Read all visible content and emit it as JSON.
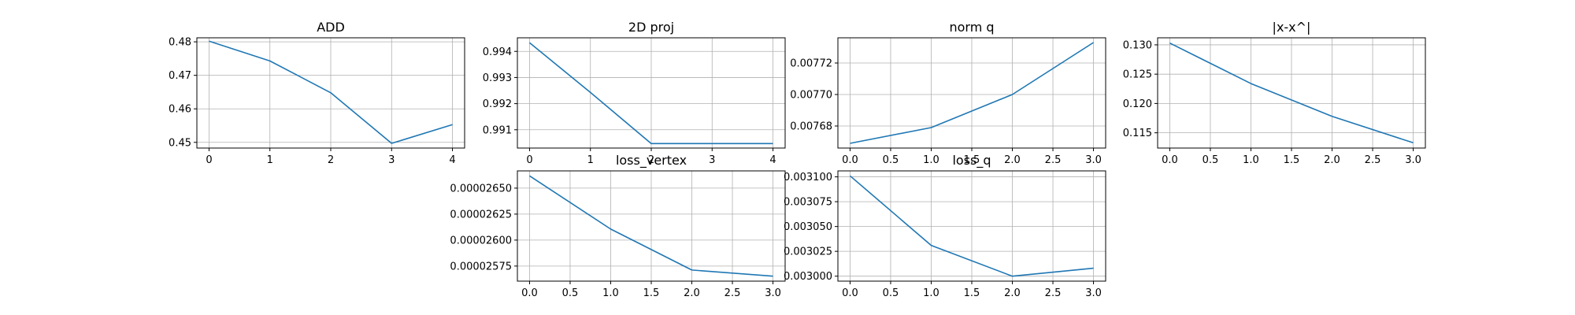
{
  "chart_data": [
    {
      "type": "line",
      "title": "ADD",
      "x": [
        0,
        1,
        2,
        3,
        4
      ],
      "y": [
        0.4802,
        0.4743,
        0.4648,
        0.4497,
        0.4553
      ],
      "xlim": [
        -0.2,
        4.2
      ],
      "ylim": [
        0.4483,
        0.4812
      ],
      "xticks": [
        0,
        1,
        2,
        3,
        4
      ],
      "xtick_labels": [
        "0",
        "1",
        "2",
        "3",
        "4"
      ],
      "yticks": [
        0.45,
        0.46,
        0.47,
        0.48
      ],
      "ytick_labels": [
        "0.45",
        "0.46",
        "0.47",
        "0.48"
      ],
      "grid": true,
      "color": "#1f77b4"
    },
    {
      "type": "line",
      "title": "2D proj",
      "x": [
        0,
        1,
        2,
        3,
        4
      ],
      "y": [
        0.99433,
        0.99243,
        0.99047,
        0.99047,
        0.99047
      ],
      "xlim": [
        -0.2,
        4.2
      ],
      "ylim": [
        0.9903,
        0.99452
      ],
      "xticks": [
        0,
        1,
        2,
        3,
        4
      ],
      "xtick_labels": [
        "0",
        "1",
        "2",
        "3",
        "4"
      ],
      "yticks": [
        0.991,
        0.992,
        0.993,
        0.994
      ],
      "ytick_labels": [
        "0.991",
        "0.992",
        "0.993",
        "0.994"
      ],
      "grid": true,
      "color": "#1f77b4"
    },
    {
      "type": "line",
      "title": "norm q",
      "x": [
        0.0,
        1.0,
        2.0,
        3.0
      ],
      "y": [
        0.007669,
        0.007679,
        0.0077,
        0.007733
      ],
      "xlim": [
        -0.15,
        3.15
      ],
      "ylim": [
        0.007666,
        0.007736
      ],
      "xticks": [
        0.0,
        0.5,
        1.0,
        1.5,
        2.0,
        2.5,
        3.0
      ],
      "xtick_labels": [
        "0.0",
        "0.5",
        "1.0",
        "1.5",
        "2.0",
        "2.5",
        "3.0"
      ],
      "yticks": [
        0.00768,
        0.0077,
        0.00772
      ],
      "ytick_labels": [
        "0.00768",
        "0.00770",
        "0.00772"
      ],
      "grid": true,
      "color": "#1f77b4"
    },
    {
      "type": "line",
      "title": "|x-x^|",
      "x": [
        0.0,
        1.0,
        2.0,
        3.0
      ],
      "y": [
        0.1303,
        0.1234,
        0.1178,
        0.1133
      ],
      "xlim": [
        -0.15,
        3.15
      ],
      "ylim": [
        0.1124,
        0.1312
      ],
      "xticks": [
        0.0,
        0.5,
        1.0,
        1.5,
        2.0,
        2.5,
        3.0
      ],
      "xtick_labels": [
        "0.0",
        "0.5",
        "1.0",
        "1.5",
        "2.0",
        "2.5",
        "3.0"
      ],
      "yticks": [
        0.115,
        0.12,
        0.125,
        0.13
      ],
      "ytick_labels": [
        "0.115",
        "0.120",
        "0.125",
        "0.130"
      ],
      "grid": true,
      "color": "#1f77b4"
    },
    {
      "type": "line",
      "title": "loss_vertex",
      "x": [
        0.0,
        1.0,
        2.0,
        3.0
      ],
      "y": [
        2.6618e-05,
        2.6106e-05,
        2.5712e-05,
        2.5653e-05
      ],
      "xlim": [
        -0.15,
        3.15
      ],
      "ylim": [
        2.5605e-05,
        2.6666e-05
      ],
      "xticks": [
        0.0,
        0.5,
        1.0,
        1.5,
        2.0,
        2.5,
        3.0
      ],
      "xtick_labels": [
        "0.0",
        "0.5",
        "1.0",
        "1.5",
        "2.0",
        "2.5",
        "3.0"
      ],
      "yticks": [
        2.575e-05,
        2.6e-05,
        2.625e-05,
        2.65e-05
      ],
      "ytick_labels": [
        "0.00002575",
        "0.00002600",
        "0.00002625",
        "0.00002650"
      ],
      "grid": true,
      "color": "#1f77b4"
    },
    {
      "type": "line",
      "title": "loss_q",
      "x": [
        0.0,
        1.0,
        2.0,
        3.0
      ],
      "y": [
        0.003101,
        0.003031,
        0.003,
        0.003008
      ],
      "xlim": [
        -0.15,
        3.15
      ],
      "ylim": [
        0.002995,
        0.003106
      ],
      "xticks": [
        0.0,
        0.5,
        1.0,
        1.5,
        2.0,
        2.5,
        3.0
      ],
      "xtick_labels": [
        "0.0",
        "0.5",
        "1.0",
        "1.5",
        "2.0",
        "2.5",
        "3.0"
      ],
      "yticks": [
        0.003,
        0.003025,
        0.00305,
        0.003075,
        0.0031
      ],
      "ytick_labels": [
        "0.003000",
        "0.003025",
        "0.003050",
        "0.003075",
        "0.003100"
      ],
      "grid": true,
      "color": "#1f77b4"
    }
  ]
}
